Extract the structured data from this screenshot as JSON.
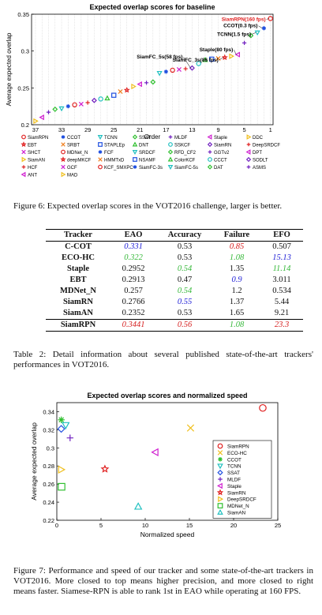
{
  "figure6": {
    "title": "Expected overlap scores for baseline",
    "xlabel": "Order",
    "ylabel": "Average expected overlap",
    "caption": "Figure 6: Expected overlap scores in the VOT2016 challenge, larger is better.",
    "yticks": [
      "0.35",
      "0.3",
      "0.25",
      "0.2"
    ],
    "xticks": [
      "37",
      "33",
      "29",
      "25",
      "21",
      "17",
      "13",
      "9",
      "5",
      "1"
    ],
    "annotations": [
      "SiamRPN(160 fps)",
      "CCOT(0.3 fps)",
      "TCNN(1.5 fps)",
      "Staple(80 fps)",
      "SiamFC_3s(86 fps)",
      "SiamFC_5s(58 fps)"
    ],
    "legend": [
      "SiamRPN",
      "CCOT",
      "TCNN",
      "SSAT",
      "MLDF",
      "Staple",
      "DDC",
      "EBT",
      "SRBT",
      "STAPLEp",
      "DNT",
      "SSKCF",
      "SiamRN",
      "DeepSRDCF",
      "SHCT",
      "MDNet_N",
      "FCF",
      "SRDCF",
      "RFD_CF2",
      "GGTv2",
      "DPT",
      "SiamAN",
      "deepMKCF",
      "HMMTxD",
      "NSAMF",
      "ColorKCF",
      "CCCT",
      "SODLT",
      "HCF",
      "GCF",
      "KCF_SMXPC",
      "SiamFC-3s",
      "SiamFC-5s",
      "DAT",
      "ASMS",
      "ANT",
      "MAD"
    ]
  },
  "table2": {
    "headers": [
      "Tracker",
      "EAO",
      "Accuracy",
      "Failure",
      "EFO"
    ],
    "rows": [
      [
        "C-COT",
        "0.331",
        "0.53",
        "0.85",
        "0.507"
      ],
      [
        "ECO-HC",
        "0.322",
        "0.53",
        "1.08",
        "15.13"
      ],
      [
        "Staple",
        "0.2952",
        "0.54",
        "1.35",
        "11.14"
      ],
      [
        "EBT",
        "0.2913",
        "0.47",
        "0.9",
        "3.011"
      ],
      [
        "MDNet_N",
        "0.257",
        "0.54",
        "1.2",
        "0.534"
      ],
      [
        "SiamRN",
        "0.2766",
        "0.55",
        "1.37",
        "5.44"
      ],
      [
        "SiamAN",
        "0.2352",
        "0.53",
        "1.65",
        "9.21"
      ],
      [
        "SiamRPN",
        "0.3441",
        "0.56",
        "1.08",
        "23.3"
      ]
    ],
    "caption": "Table 2: Detail information about several published state-of-the-art trackers' performances in VOT2016.",
    "colors": {
      "red": "#d62020",
      "green": "#36b83a",
      "blue": "#2020d6"
    }
  },
  "chart_data": {
    "type": "scatter",
    "title": "Expected overlap scores and normalized speed",
    "xlabel": "Normalized speed",
    "ylabel": "Average expected overlap",
    "xlim": [
      0,
      25
    ],
    "ylim": [
      0.22,
      0.35
    ],
    "xticks": [
      0,
      5,
      10,
      15,
      20,
      25
    ],
    "yticks": [
      0.22,
      0.24,
      0.26,
      0.28,
      0.3,
      0.32,
      0.34
    ],
    "legend_position": "right",
    "series": [
      {
        "name": "SiamRPN",
        "x": 23.3,
        "y": 0.3441,
        "color": "#e02020",
        "marker": "circle"
      },
      {
        "name": "ECO-HC",
        "x": 15.13,
        "y": 0.322,
        "color": "#f0c020",
        "marker": "x"
      },
      {
        "name": "CCOT",
        "x": 0.507,
        "y": 0.331,
        "color": "#30c030",
        "marker": "asterisk"
      },
      {
        "name": "TCNN",
        "x": 1.0,
        "y": 0.325,
        "color": "#20c0c0",
        "marker": "tri-down"
      },
      {
        "name": "SSAT",
        "x": 0.5,
        "y": 0.321,
        "color": "#2050e0",
        "marker": "diamond"
      },
      {
        "name": "MLDF",
        "x": 1.5,
        "y": 0.311,
        "color": "#7020c0",
        "marker": "plus"
      },
      {
        "name": "Staple",
        "x": 11.14,
        "y": 0.2952,
        "color": "#d020d0",
        "marker": "tri-left"
      },
      {
        "name": "SiamRN",
        "x": 5.44,
        "y": 0.2766,
        "color": "#e02020",
        "marker": "star"
      },
      {
        "name": "DeepSRDCF",
        "x": 0.5,
        "y": 0.276,
        "color": "#f0c020",
        "marker": "tri-right"
      },
      {
        "name": "MDNet_N",
        "x": 0.534,
        "y": 0.257,
        "color": "#30c030",
        "marker": "square"
      },
      {
        "name": "SiamAN",
        "x": 9.21,
        "y": 0.2352,
        "color": "#20c0c0",
        "marker": "tri-up"
      }
    ]
  },
  "figure7": {
    "caption": "Figure 7: Performance and speed of our tracker and some state-of-the-art trackers in VOT2016. More closed to top means higher precision, and more closed to right means faster. Siamese-RPN is able to rank 1st in EAO while operating at 160 FPS."
  }
}
